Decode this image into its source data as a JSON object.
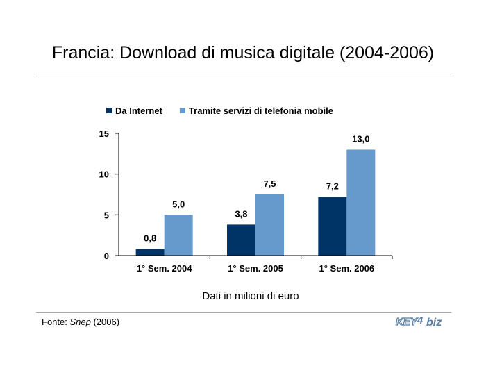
{
  "title": "Francia: Download di musica digitale (2004-2006)",
  "subtitle": "Dati in milioni di euro",
  "source": {
    "prefix": "Fonte: ",
    "name": "Snep",
    "suffix": " (2006)"
  },
  "logo": {
    "text": "KEY4biz"
  },
  "colors": {
    "internet": "#003366",
    "mobile": "#6699cc",
    "axis": "#000000",
    "rule": "#a6a6a6"
  },
  "chart_data": {
    "type": "bar",
    "categories": [
      "1° Sem. 2004",
      "1° Sem. 2005",
      "1° Sem. 2006"
    ],
    "series": [
      {
        "name": "Da Internet",
        "values": [
          0.8,
          3.8,
          7.2
        ],
        "labels": [
          "0,8",
          "3,8",
          "7,2"
        ]
      },
      {
        "name": "Tramite servizi di telefonia mobile",
        "values": [
          5.0,
          7.5,
          13.0
        ],
        "labels": [
          "5,0",
          "7,5",
          "13,0"
        ]
      }
    ],
    "yticks": [
      0,
      5,
      10,
      15
    ],
    "ylim": [
      0,
      15
    ],
    "grid": false,
    "legend": "top",
    "xlabel": "Dati in milioni di euro",
    "ylabel": ""
  }
}
